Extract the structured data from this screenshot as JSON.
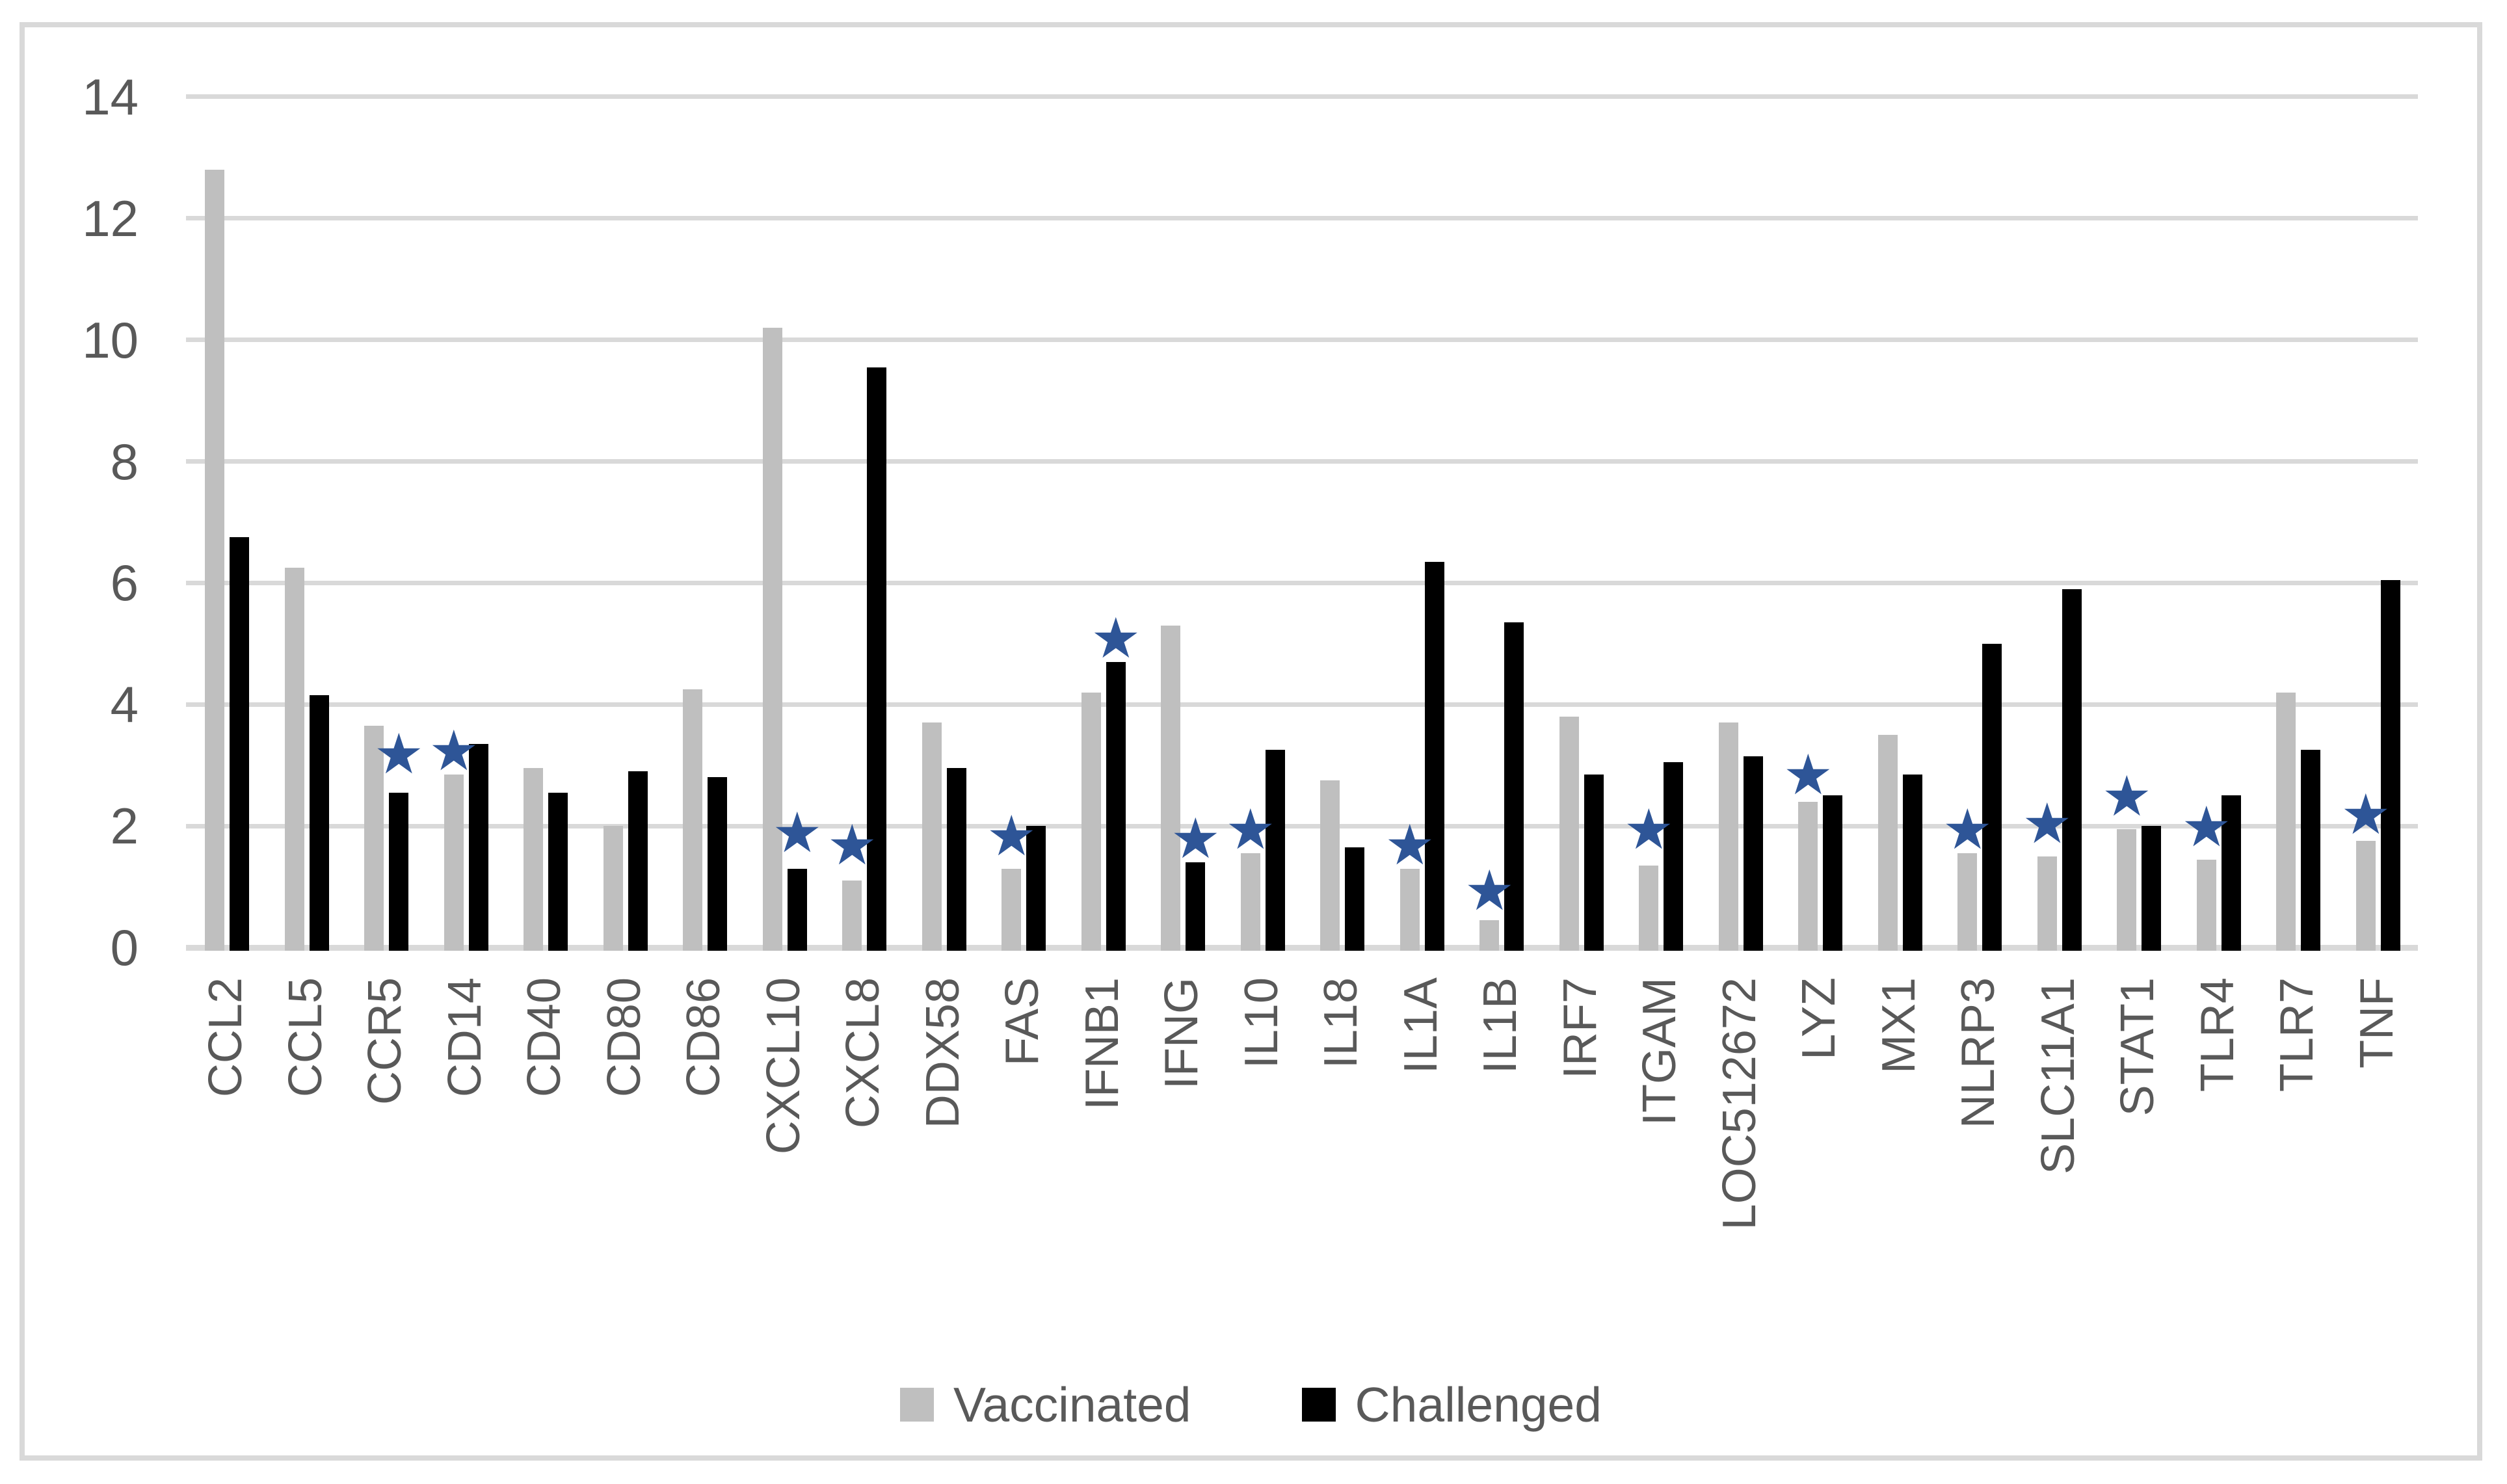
{
  "chart_data": {
    "type": "bar",
    "title": "",
    "xlabel": "",
    "ylabel": "",
    "ylim": [
      0,
      14
    ],
    "yticks": [
      0,
      2,
      4,
      6,
      8,
      10,
      12,
      14
    ],
    "grid": "horizontal",
    "legend_position": "bottom-center",
    "categories": [
      "CCL2",
      "CCL5",
      "CCR5",
      "CD14",
      "CD40",
      "CD80",
      "CD86",
      "CXCL10",
      "CXCL8",
      "DDX58",
      "FAS",
      "IFNB1",
      "IFNG",
      "IL10",
      "IL18",
      "IL1A",
      "IL1B",
      "IRF7",
      "ITGAM",
      "LOC512672",
      "LYZ",
      "MX1",
      "NLRP3",
      "SLC11A1",
      "STAT1",
      "TLR4",
      "TLR7",
      "TNF"
    ],
    "series": [
      {
        "name": "Vaccinated",
        "color": "#bfbfbf",
        "values": [
          12.8,
          6.25,
          3.65,
          2.85,
          2.95,
          2.0,
          4.25,
          10.2,
          1.1,
          3.7,
          1.3,
          4.2,
          5.3,
          1.55,
          2.75,
          1.3,
          0.45,
          3.8,
          1.35,
          3.7,
          2.4,
          3.5,
          1.55,
          1.5,
          1.95,
          1.45,
          4.2,
          1.75
        ]
      },
      {
        "name": "Challenged",
        "color": "#000000",
        "values": [
          6.75,
          4.15,
          2.55,
          3.35,
          2.55,
          2.9,
          2.8,
          1.3,
          9.55,
          2.95,
          2.0,
          4.7,
          1.4,
          3.25,
          1.65,
          6.35,
          5.35,
          2.85,
          3.05,
          3.15,
          2.5,
          2.85,
          5.0,
          5.9,
          2.0,
          2.5,
          3.25,
          6.05
        ]
      }
    ],
    "significance_stars": {
      "marker": "star",
      "color": "#2e5597",
      "items": {
        "CCR5": {
          "value": 3.15,
          "over": "challenged"
        },
        "CD14": {
          "value": 3.2,
          "over": "vaccinated"
        },
        "CXCL10": {
          "value": 1.85,
          "over": "challenged"
        },
        "CXCL8": {
          "value": 1.65,
          "over": "vaccinated"
        },
        "FAS": {
          "value": 1.8,
          "over": "vaccinated"
        },
        "IFNB1": {
          "value": 5.05,
          "over": "challenged"
        },
        "IFNG": {
          "value": 1.75,
          "over": "challenged"
        },
        "IL10": {
          "value": 1.9,
          "over": "vaccinated"
        },
        "IL1A": {
          "value": 1.65,
          "over": "vaccinated"
        },
        "IL1B": {
          "value": 0.9,
          "over": "vaccinated"
        },
        "ITGAM": {
          "value": 1.9,
          "over": "vaccinated"
        },
        "LYZ": {
          "value": 2.8,
          "over": "vaccinated"
        },
        "NLRP3": {
          "value": 1.9,
          "over": "vaccinated"
        },
        "SLC11A1": {
          "value": 2.0,
          "over": "vaccinated"
        },
        "STAT1": {
          "value": 2.45,
          "over": "vaccinated"
        },
        "TLR4": {
          "value": 1.95,
          "over": "vaccinated"
        },
        "TNF": {
          "value": 2.15,
          "over": "vaccinated"
        }
      }
    },
    "colors": {
      "gridline": "#d9d9d9",
      "frame_border": "#d9d9d9",
      "axis_text": "#595959",
      "star": "#2e5597",
      "background": "#ffffff"
    }
  },
  "legend": {
    "vaccinated_label": "Vaccinated",
    "challenged_label": "Challenged"
  }
}
